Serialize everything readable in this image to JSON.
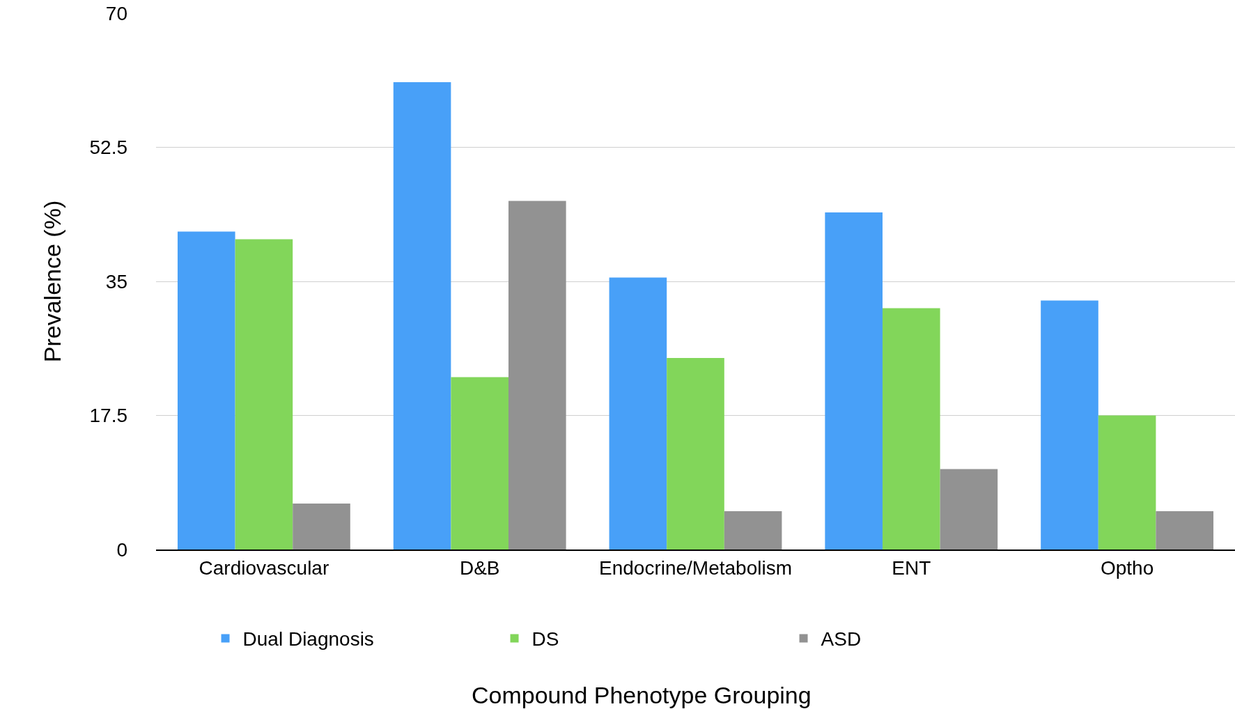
{
  "chart_data": {
    "type": "bar",
    "xlabel": "Compound Phenotype Grouping",
    "ylabel": "Prevalence (%)",
    "categories": [
      "Cardiovascular",
      "D&B",
      "Endocrine/Metabolism",
      "ENT",
      "Optho"
    ],
    "series": [
      {
        "name": "Dual Diagnosis",
        "color": "#48a0f8",
        "values": [
          41.5,
          61,
          35.5,
          44,
          32.5
        ]
      },
      {
        "name": "DS",
        "color": "#82d65a",
        "values": [
          40.5,
          22.5,
          25,
          31.5,
          17.5
        ]
      },
      {
        "name": "ASD",
        "color": "#929292",
        "values": [
          6,
          45.5,
          5,
          10.5,
          5
        ]
      }
    ],
    "ylim": [
      0,
      70
    ],
    "yticks": [
      0,
      17.5,
      35,
      52.5,
      70
    ],
    "grid": "y",
    "legend": "bottom"
  }
}
